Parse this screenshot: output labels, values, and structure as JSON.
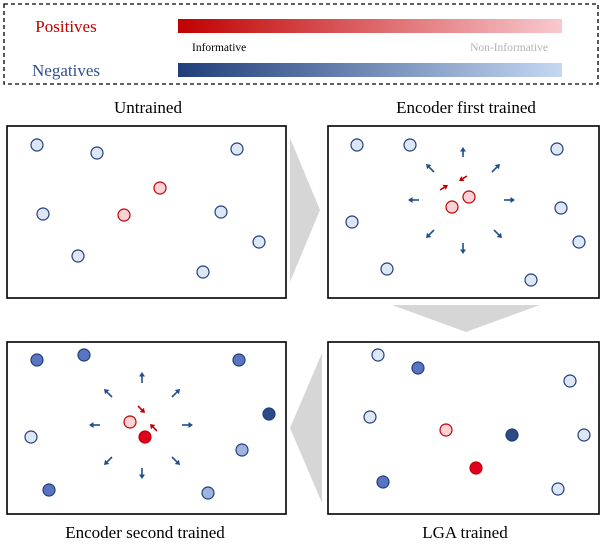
{
  "legend": {
    "positives_label": "Positives",
    "negatives_label": "Negatives",
    "informative_label": "Informative",
    "non_informative_label": "Non-Informative",
    "positive_gradient": [
      "#c00000",
      "#f8c9cf"
    ],
    "negative_gradient": [
      "#1f3f7a",
      "#c4d8f2"
    ]
  },
  "panels": {
    "untrained": {
      "title": "Untrained"
    },
    "encoder_first": {
      "title": "Encoder first trained"
    },
    "encoder_second": {
      "title": "Encoder second trained"
    },
    "lga": {
      "title": "LGA trained"
    }
  },
  "colors": {
    "positive_text": "#c00000",
    "negative_text": "#2f4f8f",
    "arrow_negative": "#1f4e8c",
    "arrow_positive": "#c00000",
    "flow_arrow": "#d6d6d6",
    "neg_light_fill": "#dce6f5",
    "neg_mid_fill": "#9fb3e0",
    "neg_strong_fill": "#5b74c2",
    "neg_darkest_fill": "#2e4a86",
    "neg_stroke": "#1f3f7a",
    "pos_light_fill": "#fbd2d6",
    "pos_strong_fill": "#e00020",
    "pos_stroke": "#c00000"
  }
}
